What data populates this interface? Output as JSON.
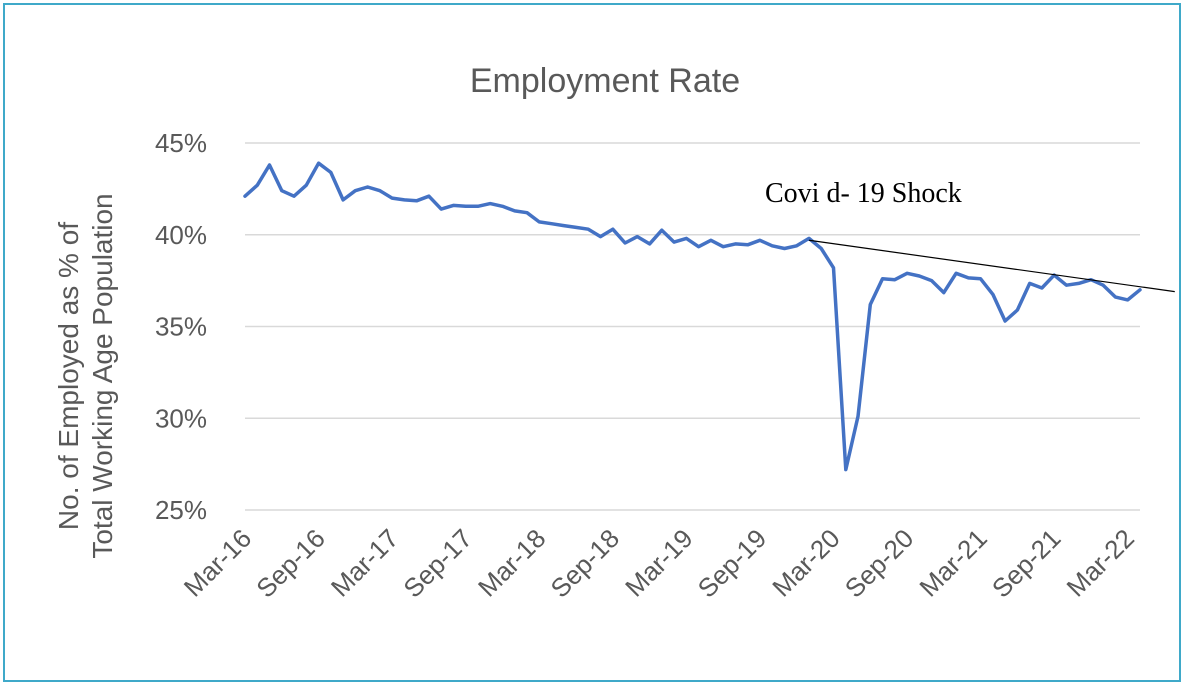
{
  "chart_data": {
    "type": "line",
    "title": "Employment Rate",
    "ylabel_lines": [
      "No. of Employed as % of",
      "Total Working Age Population"
    ],
    "xlabel": "",
    "ylim": [
      25,
      45
    ],
    "yticks": [
      25,
      30,
      35,
      40,
      45
    ],
    "ytick_labels": [
      "25%",
      "30%",
      "35%",
      "40%",
      "45%"
    ],
    "x_tick_labels": [
      "Mar-16",
      "Sep-16",
      "Mar-17",
      "Sep-17",
      "Mar-18",
      "Sep-18",
      "Mar-19",
      "Sep-19",
      "Mar-20",
      "Sep-20",
      "Mar-21",
      "Sep-21",
      "Mar-22"
    ],
    "grid": true,
    "series": [
      {
        "color": "#4472c4",
        "values": [
          42.1,
          42.7,
          43.8,
          42.4,
          42.1,
          42.7,
          43.9,
          43.4,
          41.9,
          42.4,
          42.6,
          42.4,
          42.0,
          41.9,
          41.85,
          42.1,
          41.4,
          41.6,
          41.55,
          41.55,
          41.7,
          41.55,
          41.3,
          41.2,
          40.7,
          40.6,
          40.5,
          40.4,
          40.3,
          39.9,
          40.3,
          39.55,
          39.9,
          39.5,
          40.25,
          39.6,
          39.8,
          39.35,
          39.7,
          39.35,
          39.5,
          39.45,
          39.7,
          39.4,
          39.25,
          39.4,
          39.8,
          39.25,
          38.2,
          27.2,
          30.1,
          36.2,
          37.6,
          37.55,
          37.9,
          37.75,
          37.5,
          36.85,
          37.9,
          37.65,
          37.6,
          36.75,
          35.3,
          35.9,
          37.35,
          37.1,
          37.8,
          37.25,
          37.35,
          37.55,
          37.25,
          36.6,
          36.45,
          37.0
        ]
      }
    ],
    "annotation": {
      "text": "Covi d- 19 Shock",
      "trend_line_from_index": 46,
      "trend_line_from_value": 39.7,
      "trend_line_to_index": 76,
      "trend_line_to_value": 37.5
    }
  }
}
